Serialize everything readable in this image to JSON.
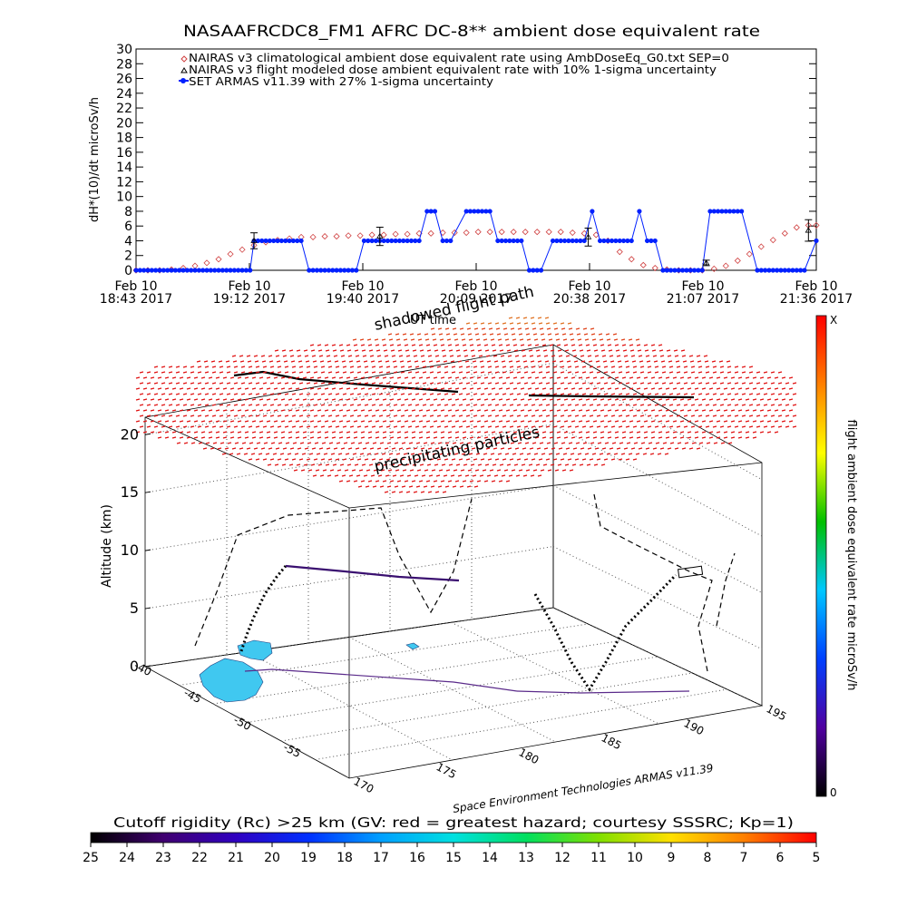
{
  "chart_data": [
    {
      "type": "line",
      "title": "NASAAFRCDC8_FM1 AFRC DC-8** ambient dose equivalent rate",
      "ylabel": "dH*(10)/dt microSv/h",
      "ylim": [
        0,
        30
      ],
      "y_ticks": [
        "0",
        "2",
        "4",
        "6",
        "8",
        "10",
        "12",
        "14",
        "16",
        "18",
        "20",
        "22",
        "24",
        "26",
        "28",
        "30"
      ],
      "x_ticks": [
        {
          "line1": "Feb 10",
          "line2": "18:43 2017"
        },
        {
          "line1": "Feb 10",
          "line2": "19:12 2017"
        },
        {
          "line1": "Feb 10",
          "line2": "19:40 2017"
        },
        {
          "line1": "Feb 10",
          "line2": "20:09 2017"
        },
        {
          "line1": "Feb 10",
          "line2": "20:38 2017"
        },
        {
          "line1": "Feb 10",
          "line2": "21:07 2017"
        },
        {
          "line1": "Feb 10",
          "line2": "21:36 2017"
        }
      ],
      "x_range_minutes_after_start": [
        0,
        173
      ],
      "legend_placement": "top-left",
      "series": [
        {
          "name": "NAIRAS v3 climatological ambient dose equivalent rate using AmbDoseEq_G0.txt SEP=0",
          "color": "#d04040",
          "marker": "diamond",
          "x": [
            0,
            3,
            6,
            9,
            12,
            15,
            18,
            21,
            24,
            27,
            30,
            33,
            36,
            39,
            42,
            45,
            48,
            51,
            54,
            57,
            60,
            63,
            66,
            69,
            72,
            75,
            78,
            81,
            84,
            87,
            90,
            93,
            96,
            99,
            102,
            105,
            108,
            111,
            114,
            117,
            120,
            123,
            126,
            129,
            132,
            135,
            138,
            141,
            144,
            147,
            150,
            153,
            156,
            159,
            162,
            165,
            168,
            171,
            173
          ],
          "values": [
            0,
            0,
            0,
            0.1,
            0.3,
            0.6,
            1.0,
            1.5,
            2.2,
            2.8,
            3.4,
            3.8,
            4.1,
            4.3,
            4.5,
            4.5,
            4.6,
            4.6,
            4.7,
            4.7,
            4.8,
            4.8,
            4.9,
            4.9,
            5.0,
            5.0,
            5.1,
            5.1,
            5.1,
            5.2,
            5.2,
            5.2,
            5.2,
            5.2,
            5.2,
            5.2,
            5.2,
            5.1,
            5.0,
            4.8,
            4.0,
            2.5,
            1.5,
            0.7,
            0.3,
            0.1,
            0,
            0,
            0,
            0.2,
            0.6,
            1.3,
            2.2,
            3.2,
            4.1,
            5.0,
            5.8,
            6.1,
            6.1
          ]
        },
        {
          "name": "NAIRAS v3 flight modeled dose ambient equivalent rate with 10% 1-sigma uncertainty",
          "color": "#000000",
          "marker": "triangle",
          "points": [
            {
              "x": 30,
              "y": 4.0
            },
            {
              "x": 62,
              "y": 4.6
            },
            {
              "x": 115,
              "y": 4.5
            },
            {
              "x": 145,
              "y": 1.0
            },
            {
              "x": 171,
              "y": 5.4
            }
          ]
        },
        {
          "name": "SET ARMAS v11.39 with 27% 1-sigma uncertainty",
          "color": "#0020ff",
          "marker": "dot",
          "x": [
            0,
            10,
            20,
            29,
            30,
            34,
            38,
            42,
            44,
            45,
            48,
            50,
            56,
            58,
            64,
            72,
            74,
            76,
            78,
            80,
            84,
            86,
            90,
            92,
            94,
            98,
            100,
            103,
            106,
            108,
            112,
            114,
            116,
            118,
            122,
            126,
            128,
            130,
            132,
            134,
            138,
            140,
            142,
            144,
            146,
            148,
            150,
            152,
            154,
            158,
            160,
            162,
            164,
            166,
            168,
            170,
            173
          ],
          "values": [
            0,
            0,
            0,
            0,
            4,
            4,
            4,
            4,
            0,
            0,
            0,
            0,
            0,
            4,
            4,
            4,
            8,
            8,
            4,
            4,
            8,
            8,
            8,
            4,
            4,
            4,
            0,
            0,
            4,
            4,
            4,
            4,
            8,
            4,
            4,
            4,
            8,
            4,
            4,
            0,
            0,
            0,
            0,
            0,
            8,
            8,
            8,
            8,
            8,
            0,
            0,
            0,
            0,
            0,
            0,
            0,
            4
          ]
        }
      ]
    },
    {
      "type": "scatter",
      "chart_kind": "3d flight path",
      "labels": {
        "shadowed": "shadowed flight path",
        "time": "UT time",
        "particles": "precipitating particles",
        "credit": "Space Environment Technologies ARMAS v11.39",
        "max_label": "X",
        "min_label": "0"
      },
      "zlabel": "Altitude (km)",
      "z_ticks": [
        "0",
        "5",
        "10",
        "15",
        "20"
      ],
      "lat_ticks": [
        "-40",
        "-45",
        "-50",
        "-55"
      ],
      "lon_ticks": [
        "170",
        "175",
        "180",
        "185",
        "190",
        "195"
      ],
      "colorbar_label": "flight ambient dose equivalent rate microSv/h",
      "colorbar_colors": [
        "#ff0000",
        "#ff8000",
        "#ffff00",
        "#00c000",
        "#00c8ff",
        "#0040ff",
        "#5000a0",
        "#000000"
      ],
      "particle_color": "#e01010",
      "land_color": "#40c8f0"
    },
    {
      "type": "heatmap",
      "chart_kind": "color bar",
      "title": "Cutoff rigidity (Rc) >25 km (GV: red = greatest hazard; courtesy SSSRC; Kp=1)",
      "ticks": [
        "25",
        "24",
        "23",
        "22",
        "21",
        "20",
        "19",
        "18",
        "17",
        "16",
        "15",
        "14",
        "13",
        "12",
        "11",
        "10",
        "9",
        "8",
        "7",
        "6",
        "5"
      ],
      "colors": [
        "#000000",
        "#400070",
        "#3000c0",
        "#0030ff",
        "#00a0ff",
        "#00e0e0",
        "#00e060",
        "#80e000",
        "#ffe000",
        "#ff8000",
        "#ff0000"
      ]
    }
  ]
}
